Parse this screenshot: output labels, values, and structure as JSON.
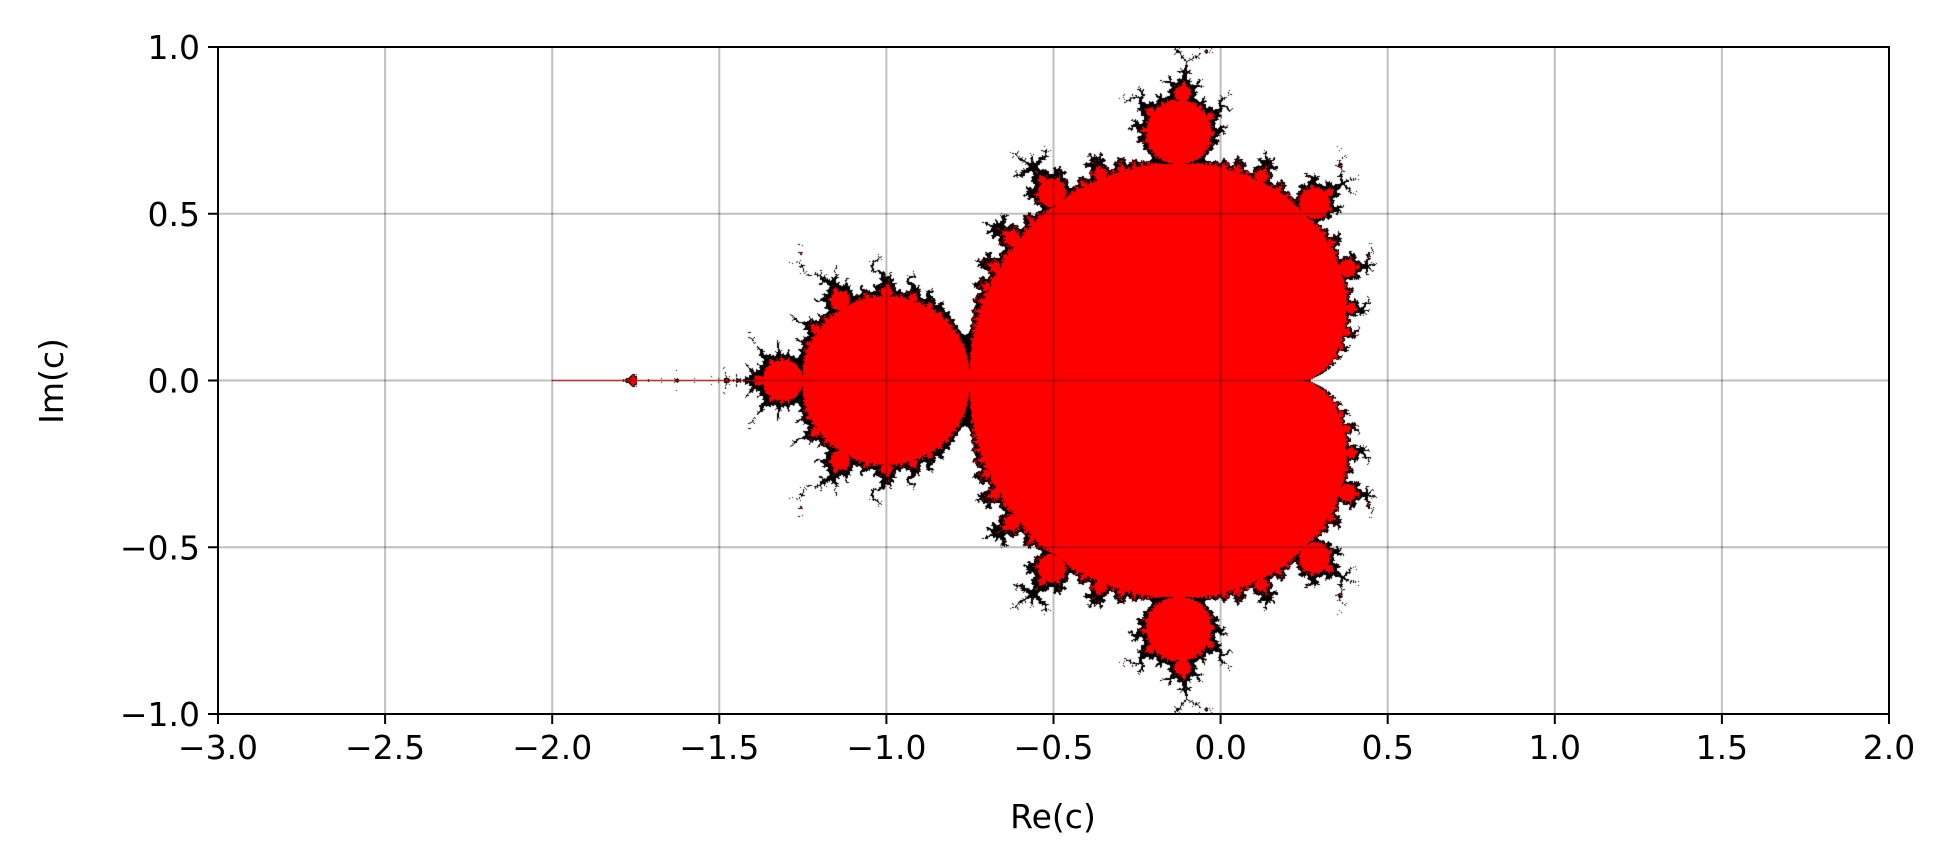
{
  "chart_data": {
    "type": "heatmap",
    "title": "",
    "xlabel": "Re(c)",
    "ylabel": "Im(c)",
    "xlim": [
      -3.0,
      2.0
    ],
    "ylim": [
      -1.0,
      1.0
    ],
    "x_ticks": [
      -3.0,
      -2.5,
      -2.0,
      -1.5,
      -1.0,
      -0.5,
      0.0,
      0.5,
      1.0,
      1.5,
      2.0
    ],
    "x_tick_labels": [
      "−3.0",
      "−2.5",
      "−2.0",
      "−1.5",
      "−1.0",
      "−0.5",
      "0.0",
      "0.5",
      "1.0",
      "1.5",
      "2.0"
    ],
    "y_ticks": [
      -1.0,
      -0.5,
      0.0,
      0.5,
      1.0
    ],
    "y_tick_labels": [
      "−1.0",
      "−0.5",
      "0.0",
      "0.5",
      "1.0"
    ],
    "grid": true,
    "legend": "none",
    "set_color": "#ff0000",
    "boundary_color": "#000000",
    "background_color": "#ffffff",
    "max_iterations": 100
  }
}
